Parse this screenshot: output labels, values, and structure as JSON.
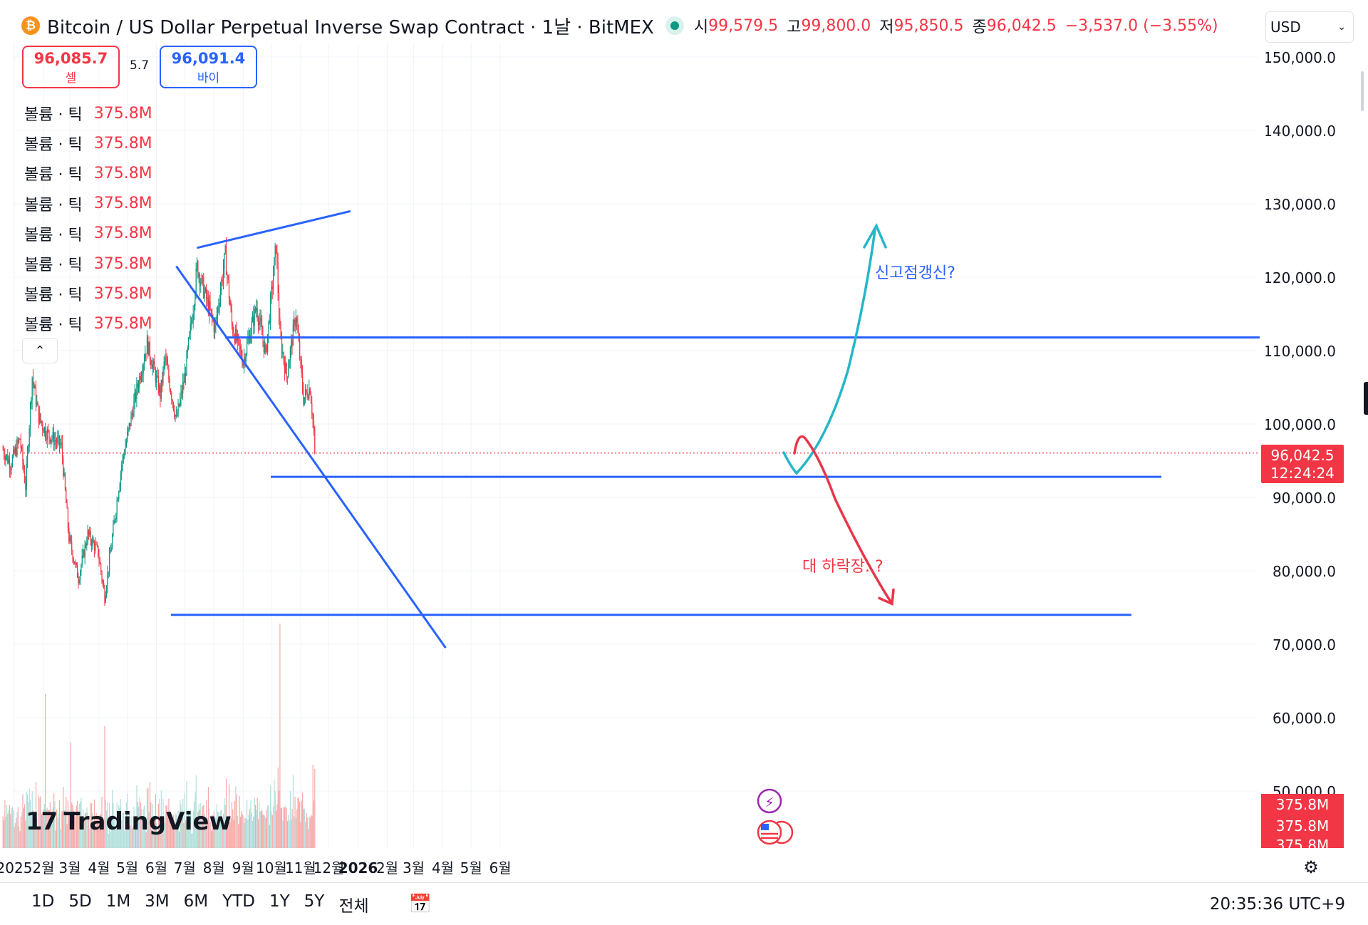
{
  "header": {
    "title": "Bitcoin / US Dollar Perpetual Inverse Swap Contract · 1날 · BitMEX",
    "ohlc": [
      {
        "label": "시",
        "value": "99,579.5"
      },
      {
        "label": "고",
        "value": "99,800.0"
      },
      {
        "label": "저",
        "value": "95,850.5"
      },
      {
        "label": "종",
        "value": "96,042.5"
      }
    ],
    "change": "−3,537.0 (−3.55%)",
    "currency": "USD"
  },
  "trade": {
    "sell_price": "96,085.7",
    "sell_label": "셀",
    "spread": "5.7",
    "buy_price": "96,091.4",
    "buy_label": "바이"
  },
  "indicators": [
    {
      "name": "볼륨 · 틱",
      "value": "375.8M"
    },
    {
      "name": "볼륨 · 틱",
      "value": "375.8M"
    },
    {
      "name": "볼륨 · 틱",
      "value": "375.8M"
    },
    {
      "name": "볼륨 · 틱",
      "value": "375.8M"
    },
    {
      "name": "볼륨 · 틱",
      "value": "375.8M"
    },
    {
      "name": "볼륨 · 틱",
      "value": "375.8M"
    },
    {
      "name": "볼륨 · 틱",
      "value": "375.8M"
    },
    {
      "name": "볼륨 · 틱",
      "value": "375.8M"
    }
  ],
  "price_label": {
    "value": "96,042.5",
    "countdown": "12:24:24"
  },
  "volume_labels": [
    "375.8M",
    "375.8M",
    "375.8M"
  ],
  "annotations": {
    "up_text": "신고점갱신?",
    "down_text": "대 하락장..?"
  },
  "logo": "TradingView",
  "bottom": {
    "ranges": [
      "1D",
      "5D",
      "1M",
      "3M",
      "6M",
      "YTD",
      "1Y",
      "5Y",
      "전체"
    ],
    "clock": "20:35:36 UTC+9"
  },
  "colors": {
    "up": "#089981",
    "down": "#f23645",
    "trendline": "#2962ff",
    "up_arrow": "#26b6c8",
    "down_arrow": "#e8364a",
    "annotation_blue": "#2962ff",
    "annotation_red": "#f23645"
  },
  "chart_data": {
    "type": "candlestick",
    "title": "Bitcoin / US Dollar Perpetual Inverse Swap Contract · 1날 · BitMEX",
    "interval": "1날",
    "y_ticks": [
      150000,
      140000,
      130000,
      120000,
      110000,
      100000,
      90000,
      80000,
      70000,
      60000,
      50000
    ],
    "y_tick_labels": [
      "150,000.0",
      "140,000.0",
      "130,000.0",
      "120,000.0",
      "110,000.0",
      "100,000.0",
      "90,000.0",
      "80,000.0",
      "70,000.0",
      "60,000.0",
      "50,000.0"
    ],
    "x_ticks": [
      {
        "date": "2025-01-01",
        "label": "2025"
      },
      {
        "date": "2025-02-01",
        "label": "2월"
      },
      {
        "date": "2025-03-01",
        "label": "3월"
      },
      {
        "date": "2025-04-01",
        "label": "4월"
      },
      {
        "date": "2025-05-01",
        "label": "5월"
      },
      {
        "date": "2025-06-01",
        "label": "6월"
      },
      {
        "date": "2025-07-01",
        "label": "7월"
      },
      {
        "date": "2025-08-01",
        "label": "8월"
      },
      {
        "date": "2025-09-01",
        "label": "9월"
      },
      {
        "date": "2025-10-01",
        "label": "10월"
      },
      {
        "date": "2025-11-01",
        "label": "11월"
      },
      {
        "date": "2025-12-01",
        "label": "12월"
      },
      {
        "date": "2026-01-01",
        "label": "2026"
      },
      {
        "date": "2026-02-01",
        "label": "2월"
      },
      {
        "date": "2026-03-01",
        "label": "3월"
      },
      {
        "date": "2026-04-01",
        "label": "4월"
      },
      {
        "date": "2026-05-01",
        "label": "5월"
      },
      {
        "date": "2026-06-01",
        "label": "6월"
      }
    ],
    "last_price": 96042.5,
    "price_path": [
      {
        "date": "2024-12-20",
        "price": 96500
      },
      {
        "date": "2024-12-28",
        "price": 94500
      },
      {
        "date": "2025-01-07",
        "price": 98000
      },
      {
        "date": "2025-01-13",
        "price": 91500
      },
      {
        "date": "2025-01-20",
        "price": 106500
      },
      {
        "date": "2025-01-27",
        "price": 101000
      },
      {
        "date": "2025-02-03",
        "price": 99000
      },
      {
        "date": "2025-02-20",
        "price": 97000
      },
      {
        "date": "2025-02-28",
        "price": 84500
      },
      {
        "date": "2025-03-10",
        "price": 79000
      },
      {
        "date": "2025-03-20",
        "price": 85000
      },
      {
        "date": "2025-03-31",
        "price": 82500
      },
      {
        "date": "2025-04-07",
        "price": 76500
      },
      {
        "date": "2025-04-15",
        "price": 84500
      },
      {
        "date": "2025-04-25",
        "price": 94500
      },
      {
        "date": "2025-05-10",
        "price": 104000
      },
      {
        "date": "2025-05-22",
        "price": 111000
      },
      {
        "date": "2025-06-05",
        "price": 104000
      },
      {
        "date": "2025-06-10",
        "price": 109000
      },
      {
        "date": "2025-06-22",
        "price": 100500
      },
      {
        "date": "2025-07-01",
        "price": 106500
      },
      {
        "date": "2025-07-10",
        "price": 116000
      },
      {
        "date": "2025-07-14",
        "price": 121500
      },
      {
        "date": "2025-07-25",
        "price": 116500
      },
      {
        "date": "2025-08-02",
        "price": 113000
      },
      {
        "date": "2025-08-13",
        "price": 123000
      },
      {
        "date": "2025-08-20",
        "price": 113500
      },
      {
        "date": "2025-09-01",
        "price": 108500
      },
      {
        "date": "2025-09-15",
        "price": 116000
      },
      {
        "date": "2025-09-25",
        "price": 109500
      },
      {
        "date": "2025-10-06",
        "price": 124500
      },
      {
        "date": "2025-10-10",
        "price": 112000
      },
      {
        "date": "2025-10-17",
        "price": 106500
      },
      {
        "date": "2025-10-27",
        "price": 115000
      },
      {
        "date": "2025-11-04",
        "price": 103500
      },
      {
        "date": "2025-11-11",
        "price": 105000
      },
      {
        "date": "2025-11-17",
        "price": 96042.5
      }
    ],
    "volume_spikes": [
      {
        "date": "2025-02-03",
        "value": 480
      },
      {
        "date": "2025-03-02",
        "value": 330
      },
      {
        "date": "2025-04-07",
        "value": 380
      },
      {
        "date": "2025-10-10",
        "value": 700
      },
      {
        "date": "2025-11-14",
        "value": 260
      }
    ],
    "drawings": {
      "horizontal_levels": [
        111800,
        92800,
        74000
      ],
      "ascending_resistance": [
        {
          "date": "2025-07-14",
          "price": 124000
        },
        {
          "date": "2025-12-24",
          "price": 129000
        }
      ],
      "descending_trendline": [
        {
          "date": "2025-06-22",
          "price": 121500
        },
        {
          "date": "2026-04-04",
          "price": 69500
        }
      ],
      "scenario_up": {
        "target": 127000,
        "label": "신고점갱신?"
      },
      "scenario_down": {
        "target": 75500,
        "label": "대 하락장..?"
      }
    }
  }
}
